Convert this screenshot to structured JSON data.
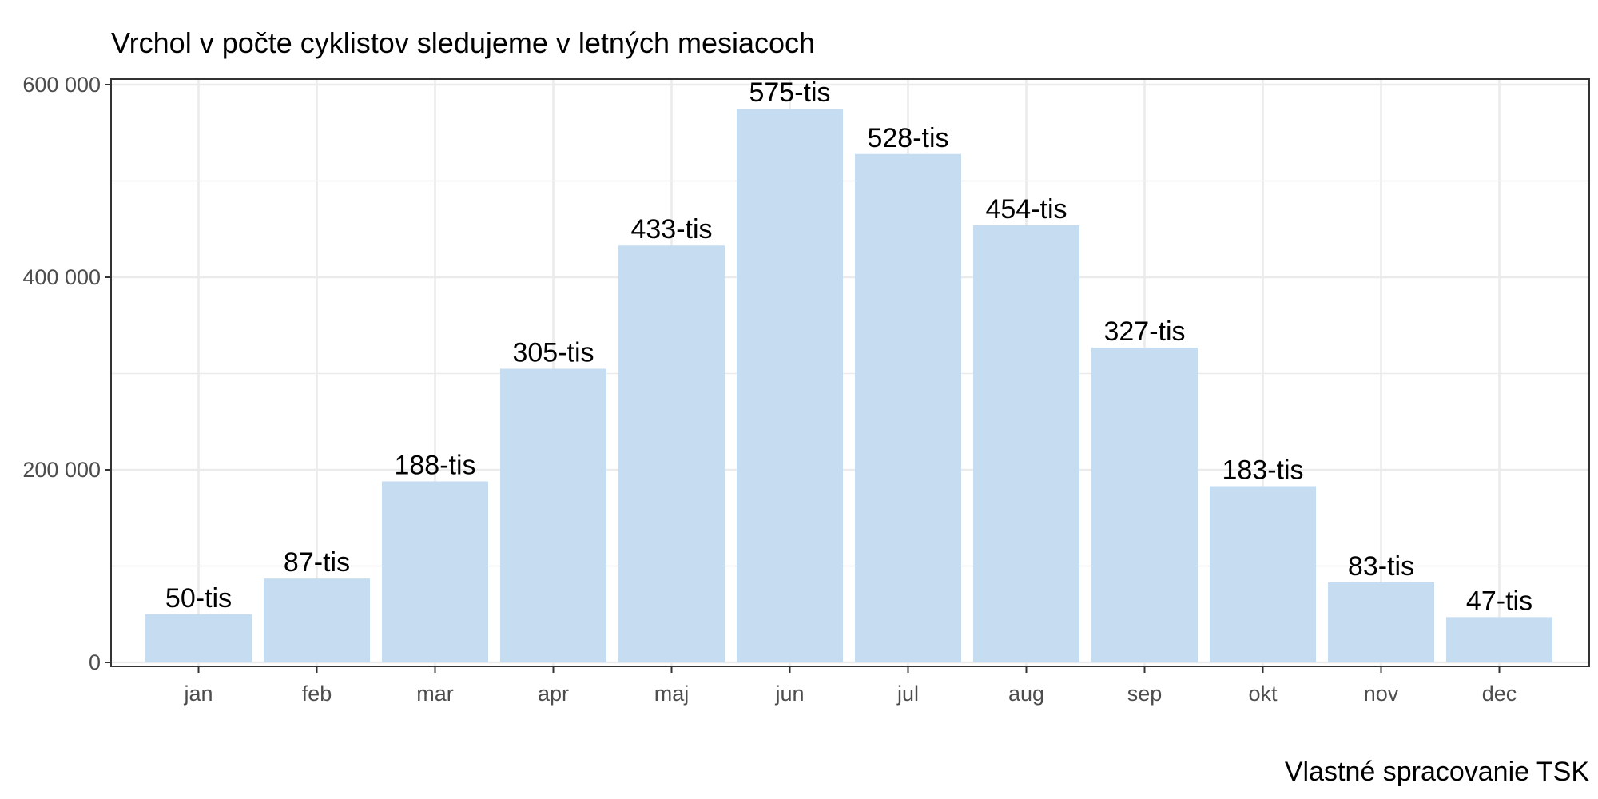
{
  "chart_data": {
    "type": "bar",
    "title": "Vrchol v počte cyklistov sledujeme v letných mesiacoch",
    "caption": "Vlastné spracovanie TSK",
    "xlabel": "",
    "ylabel": "",
    "categories": [
      "jan",
      "feb",
      "mar",
      "apr",
      "maj",
      "jun",
      "jul",
      "aug",
      "sep",
      "okt",
      "nov",
      "dec"
    ],
    "values": [
      50000,
      87000,
      188000,
      305000,
      433000,
      575000,
      528000,
      454000,
      327000,
      183000,
      83000,
      47000
    ],
    "data_labels": [
      "50-tis",
      "87-tis",
      "188-tis",
      "305-tis",
      "433-tis",
      "575-tis",
      "528-tis",
      "454-tis",
      "327-tis",
      "183-tis",
      "83-tis",
      "47-tis"
    ],
    "ylim": [
      0,
      600000
    ],
    "yticks": [
      0,
      200000,
      400000,
      600000
    ],
    "ytick_labels": [
      "0",
      "200 000",
      "400 000",
      "600 000"
    ],
    "grid": true,
    "bar_color": "#c6dcf0"
  }
}
